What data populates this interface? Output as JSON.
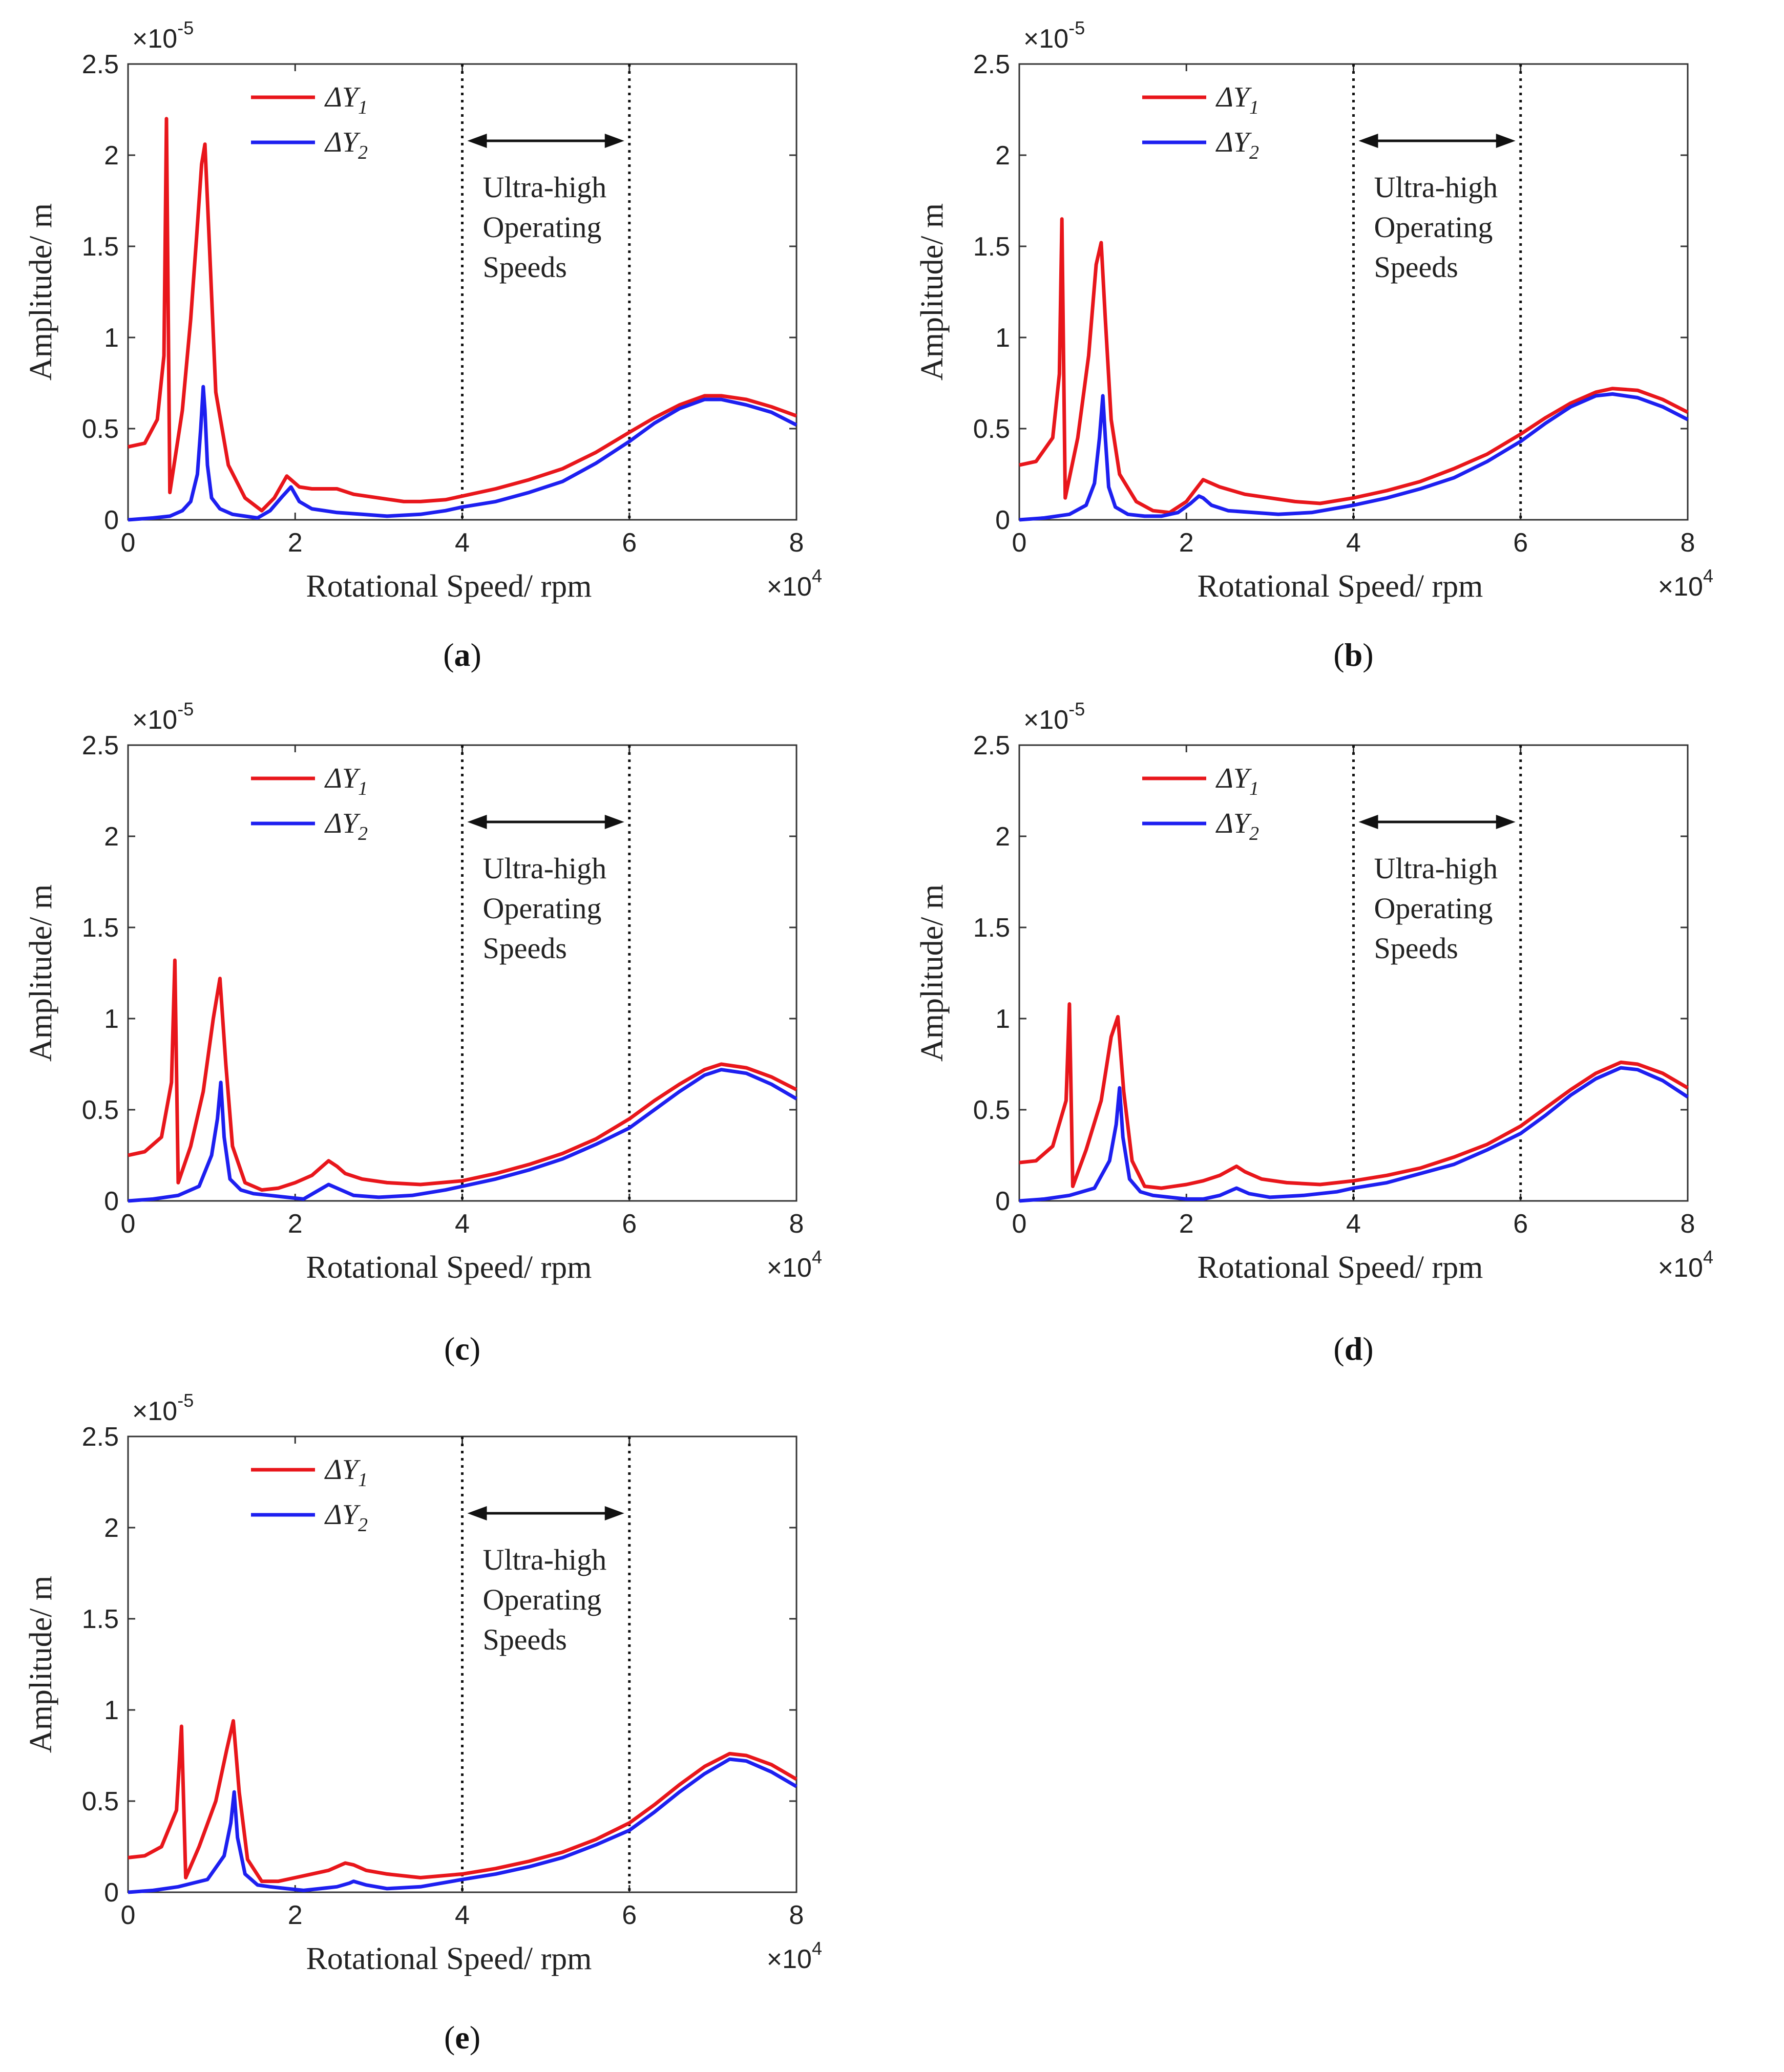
{
  "chart_data": [
    {
      "type": "line",
      "caption": "a",
      "xlabel": "Rotational  Speed/ rpm",
      "ylabel": "Amplitude/  m",
      "xlim": [
        0,
        80000
      ],
      "ylim": [
        0,
        2.5e-05
      ],
      "x_ticks": [
        "0",
        "2",
        "4",
        "6",
        "8"
      ],
      "y_ticks": [
        "0",
        "0.5",
        "1",
        "1.5",
        "2",
        "2.5"
      ],
      "x_multiplier": {
        "base": "×10",
        "exp": "4"
      },
      "y_multiplier": {
        "base": "×10",
        "exp": "-5"
      },
      "annotation": {
        "lines": [
          "Ultra-high",
          "Operating",
          "Speeds"
        ],
        "x_range": [
          40000,
          60000
        ]
      },
      "series": [
        {
          "name": "ΔY1",
          "symbol": "ΔY",
          "subscript": "1",
          "color": "#e8161b",
          "x": [
            0,
            2000,
            3500,
            4300,
            4600,
            5000,
            6500,
            7500,
            8200,
            8800,
            9200,
            9700,
            10500,
            12000,
            14000,
            16000,
            17500,
            19000,
            19500,
            20500,
            22000,
            25000,
            27000,
            30000,
            33000,
            35000,
            38000,
            40000,
            44000,
            48000,
            52000,
            56000,
            60000,
            63000,
            66000,
            69000,
            71000,
            74000,
            77000,
            80000
          ],
          "y": [
            4e-06,
            4.2e-06,
            5.5e-06,
            9e-06,
            2.2e-05,
            1.5e-06,
            6e-06,
            1.1e-05,
            1.55e-05,
            1.95e-05,
            2.06e-05,
            1.55e-05,
            7e-06,
            3e-06,
            1.2e-06,
            5e-07,
            1.2e-06,
            2.4e-06,
            2.2e-06,
            1.8e-06,
            1.7e-06,
            1.7e-06,
            1.4e-06,
            1.2e-06,
            1e-06,
            1e-06,
            1.1e-06,
            1.3e-06,
            1.7e-06,
            2.2e-06,
            2.8e-06,
            3.7e-06,
            4.8e-06,
            5.6e-06,
            6.3e-06,
            6.8e-06,
            6.8e-06,
            6.6e-06,
            6.2e-06,
            5.7e-06
          ]
        },
        {
          "name": "ΔY2",
          "symbol": "ΔY",
          "subscript": "2",
          "color": "#1d1ff0",
          "x": [
            0,
            3000,
            5000,
            6500,
            7500,
            8300,
            8700,
            9000,
            9200,
            9500,
            10000,
            11000,
            12500,
            14000,
            15500,
            17000,
            18500,
            19500,
            20500,
            22000,
            25000,
            28000,
            31000,
            35000,
            38000,
            40000,
            44000,
            48000,
            52000,
            56000,
            60000,
            63000,
            66000,
            69000,
            71000,
            74000,
            77000,
            80000
          ],
          "y": [
            0,
            1e-07,
            2e-07,
            5e-07,
            1e-06,
            2.5e-06,
            5e-06,
            7.3e-06,
            6e-06,
            3e-06,
            1.2e-06,
            6e-07,
            3e-07,
            2e-07,
            1e-07,
            5e-07,
            1.3e-06,
            1.8e-06,
            1e-06,
            6e-07,
            4e-07,
            3e-07,
            2e-07,
            3e-07,
            5e-07,
            7e-07,
            1e-06,
            1.5e-06,
            2.1e-06,
            3.1e-06,
            4.3e-06,
            5.3e-06,
            6.1e-06,
            6.6e-06,
            6.6e-06,
            6.3e-06,
            5.9e-06,
            5.2e-06
          ]
        }
      ]
    },
    {
      "type": "line",
      "caption": "b",
      "xlabel": "Rotational  Speed/ rpm",
      "ylabel": "Amplitude/  m",
      "xlim": [
        0,
        80000
      ],
      "ylim": [
        0,
        2.5e-05
      ],
      "x_ticks": [
        "0",
        "2",
        "4",
        "6",
        "8"
      ],
      "y_ticks": [
        "0",
        "0.5",
        "1",
        "1.5",
        "2",
        "2.5"
      ],
      "x_multiplier": {
        "base": "×10",
        "exp": "4"
      },
      "y_multiplier": {
        "base": "×10",
        "exp": "-5"
      },
      "annotation": {
        "lines": [
          "Ultra-high",
          "Operating",
          "Speeds"
        ],
        "x_range": [
          40000,
          60000
        ]
      },
      "series": [
        {
          "name": "ΔY1",
          "symbol": "ΔY",
          "subscript": "1",
          "color": "#e8161b",
          "x": [
            0,
            2000,
            4000,
            4800,
            5100,
            5500,
            7000,
            8300,
            9200,
            9800,
            10300,
            11000,
            12000,
            14000,
            16000,
            18000,
            20000,
            21000,
            22000,
            24000,
            27000,
            30000,
            33000,
            36000,
            40000,
            44000,
            48000,
            52000,
            56000,
            60000,
            63000,
            66000,
            69000,
            71000,
            74000,
            77000,
            80000
          ],
          "y": [
            3e-06,
            3.2e-06,
            4.5e-06,
            8e-06,
            1.65e-05,
            1.2e-06,
            4.5e-06,
            9e-06,
            1.4e-05,
            1.52e-05,
            1.1e-05,
            5.5e-06,
            2.5e-06,
            1e-06,
            5e-07,
            4e-07,
            1e-06,
            1.6e-06,
            2.2e-06,
            1.8e-06,
            1.4e-06,
            1.2e-06,
            1e-06,
            9e-07,
            1.2e-06,
            1.6e-06,
            2.1e-06,
            2.8e-06,
            3.6e-06,
            4.7e-06,
            5.6e-06,
            6.4e-06,
            7e-06,
            7.2e-06,
            7.1e-06,
            6.6e-06,
            5.9e-06
          ]
        },
        {
          "name": "ΔY2",
          "symbol": "ΔY",
          "subscript": "2",
          "color": "#1d1ff0",
          "x": [
            0,
            3000,
            6000,
            8000,
            9000,
            9600,
            10000,
            10300,
            10700,
            11500,
            13000,
            15000,
            17000,
            19000,
            20500,
            21500,
            22000,
            23000,
            25000,
            28000,
            31000,
            35000,
            40000,
            44000,
            48000,
            52000,
            56000,
            60000,
            63000,
            66000,
            69000,
            71000,
            74000,
            77000,
            80000
          ],
          "y": [
            0,
            1e-07,
            3e-07,
            8e-07,
            2e-06,
            4.5e-06,
            6.8e-06,
            4.5e-06,
            1.8e-06,
            7e-07,
            3e-07,
            2e-07,
            2e-07,
            4e-07,
            9e-07,
            1.3e-06,
            1.2e-06,
            8e-07,
            5e-07,
            4e-07,
            3e-07,
            4e-07,
            8e-07,
            1.2e-06,
            1.7e-06,
            2.3e-06,
            3.2e-06,
            4.3e-06,
            5.3e-06,
            6.2e-06,
            6.8e-06,
            6.9e-06,
            6.7e-06,
            6.2e-06,
            5.5e-06
          ]
        }
      ]
    },
    {
      "type": "line",
      "caption": "c",
      "xlabel": "Rotational  Speed/ rpm",
      "ylabel": "Amplitude/  m",
      "xlim": [
        0,
        80000
      ],
      "ylim": [
        0,
        2.5e-05
      ],
      "x_ticks": [
        "0",
        "2",
        "4",
        "6",
        "8"
      ],
      "y_ticks": [
        "0",
        "0.5",
        "1",
        "1.5",
        "2",
        "2.5"
      ],
      "x_multiplier": {
        "base": "×10",
        "exp": "4"
      },
      "y_multiplier": {
        "base": "×10",
        "exp": "-5"
      },
      "annotation": {
        "lines": [
          "Ultra-high",
          "Operating",
          "Speeds"
        ],
        "x_range": [
          40000,
          60000
        ]
      },
      "series": [
        {
          "name": "ΔY1",
          "symbol": "ΔY",
          "subscript": "1",
          "color": "#e8161b",
          "x": [
            0,
            2000,
            4000,
            5200,
            5600,
            6000,
            7500,
            9000,
            10200,
            11000,
            11700,
            12500,
            14000,
            16000,
            18000,
            20000,
            22000,
            24000,
            25000,
            26000,
            28000,
            31000,
            35000,
            40000,
            44000,
            48000,
            52000,
            56000,
            60000,
            63000,
            66000,
            69000,
            71000,
            74000,
            77000,
            80000
          ],
          "y": [
            2.5e-06,
            2.7e-06,
            3.5e-06,
            6.5e-06,
            1.32e-05,
            1e-06,
            3e-06,
            6e-06,
            1e-05,
            1.22e-05,
            7.5e-06,
            3e-06,
            1e-06,
            6e-07,
            7e-07,
            1e-06,
            1.4e-06,
            2.2e-06,
            1.9e-06,
            1.5e-06,
            1.2e-06,
            1e-06,
            9e-07,
            1.1e-06,
            1.5e-06,
            2e-06,
            2.6e-06,
            3.4e-06,
            4.5e-06,
            5.5e-06,
            6.4e-06,
            7.2e-06,
            7.5e-06,
            7.3e-06,
            6.8e-06,
            6.1e-06
          ]
        },
        {
          "name": "ΔY2",
          "symbol": "ΔY",
          "subscript": "2",
          "color": "#1d1ff0",
          "x": [
            0,
            3000,
            6000,
            8500,
            10000,
            10700,
            11100,
            11500,
            12200,
            13500,
            15000,
            17000,
            19000,
            21000,
            22500,
            24000,
            25000,
            27000,
            30000,
            34000,
            38000,
            40000,
            44000,
            48000,
            52000,
            56000,
            60000,
            63000,
            66000,
            69000,
            71000,
            74000,
            77000,
            80000
          ],
          "y": [
            0,
            1e-07,
            3e-07,
            8e-07,
            2.5e-06,
            4.5e-06,
            6.5e-06,
            3.5e-06,
            1.2e-06,
            6e-07,
            4e-07,
            3e-07,
            2e-07,
            1e-07,
            5e-07,
            9e-07,
            7e-07,
            3e-07,
            2e-07,
            3e-07,
            6e-07,
            8e-07,
            1.2e-06,
            1.7e-06,
            2.3e-06,
            3.1e-06,
            4e-06,
            5e-06,
            6e-06,
            6.9e-06,
            7.2e-06,
            7e-06,
            6.4e-06,
            5.6e-06
          ]
        }
      ]
    },
    {
      "type": "line",
      "caption": "d",
      "xlabel": "Rotational  Speed/ rpm",
      "ylabel": "Amplitude/  m",
      "xlim": [
        0,
        80000
      ],
      "ylim": [
        0,
        2.5e-05
      ],
      "x_ticks": [
        "0",
        "2",
        "4",
        "6",
        "8"
      ],
      "y_ticks": [
        "0",
        "0.5",
        "1",
        "1.5",
        "2",
        "2.5"
      ],
      "x_multiplier": {
        "base": "×10",
        "exp": "4"
      },
      "y_multiplier": {
        "base": "×10",
        "exp": "-5"
      },
      "annotation": {
        "lines": [
          "Ultra-high",
          "Operating",
          "Speeds"
        ],
        "x_range": [
          40000,
          60000
        ]
      },
      "series": [
        {
          "name": "ΔY1",
          "symbol": "ΔY",
          "subscript": "1",
          "color": "#e8161b",
          "x": [
            0,
            2000,
            4000,
            5600,
            6000,
            6400,
            8000,
            9800,
            11000,
            11800,
            12500,
            13500,
            15000,
            17000,
            20000,
            22000,
            24000,
            26000,
            27000,
            29000,
            32000,
            36000,
            40000,
            44000,
            48000,
            52000,
            56000,
            60000,
            63000,
            66000,
            69000,
            72000,
            74000,
            77000,
            80000
          ],
          "y": [
            2.1e-06,
            2.2e-06,
            3e-06,
            5.5e-06,
            1.08e-05,
            8e-07,
            2.8e-06,
            5.5e-06,
            9e-06,
            1.01e-05,
            6e-06,
            2.2e-06,
            8e-07,
            7e-07,
            9e-07,
            1.1e-06,
            1.4e-06,
            1.9e-06,
            1.6e-06,
            1.2e-06,
            1e-06,
            9e-07,
            1.1e-06,
            1.4e-06,
            1.8e-06,
            2.4e-06,
            3.1e-06,
            4.1e-06,
            5.1e-06,
            6.1e-06,
            7e-06,
            7.6e-06,
            7.5e-06,
            7e-06,
            6.2e-06
          ]
        },
        {
          "name": "ΔY2",
          "symbol": "ΔY",
          "subscript": "2",
          "color": "#1d1ff0",
          "x": [
            0,
            3000,
            6000,
            9000,
            10800,
            11600,
            12000,
            12400,
            13200,
            14500,
            16000,
            18000,
            20000,
            22000,
            24000,
            25500,
            26000,
            27500,
            30000,
            34000,
            38000,
            40000,
            44000,
            48000,
            52000,
            56000,
            60000,
            63000,
            66000,
            69000,
            72000,
            74000,
            77000,
            80000
          ],
          "y": [
            0,
            1e-07,
            3e-07,
            7e-07,
            2.2e-06,
            4.2e-06,
            6.2e-06,
            3.5e-06,
            1.2e-06,
            5e-07,
            3e-07,
            2e-07,
            1e-07,
            1e-07,
            3e-07,
            6e-07,
            7e-07,
            4e-07,
            2e-07,
            3e-07,
            5e-07,
            7e-07,
            1e-06,
            1.5e-06,
            2e-06,
            2.8e-06,
            3.7e-06,
            4.7e-06,
            5.8e-06,
            6.7e-06,
            7.3e-06,
            7.2e-06,
            6.6e-06,
            5.7e-06
          ]
        }
      ]
    },
    {
      "type": "line",
      "caption": "e",
      "xlabel": "Rotational  Speed/ rpm",
      "ylabel": "Amplitude/  m",
      "xlim": [
        0,
        80000
      ],
      "ylim": [
        0,
        2.5e-05
      ],
      "x_ticks": [
        "0",
        "2",
        "4",
        "6",
        "8"
      ],
      "y_ticks": [
        "0",
        "0.5",
        "1",
        "1.5",
        "2",
        "2.5"
      ],
      "x_multiplier": {
        "base": "×10",
        "exp": "4"
      },
      "y_multiplier": {
        "base": "×10",
        "exp": "-5"
      },
      "annotation": {
        "lines": [
          "Ultra-high",
          "Operating",
          "Speeds"
        ],
        "x_range": [
          40000,
          60000
        ]
      },
      "series": [
        {
          "name": "ΔY1",
          "symbol": "ΔY",
          "subscript": "1",
          "color": "#e8161b",
          "x": [
            0,
            2000,
            4000,
            5800,
            6400,
            6900,
            8500,
            10500,
            11800,
            12600,
            13300,
            14300,
            16000,
            18000,
            20000,
            22000,
            24000,
            26000,
            27000,
            28500,
            31000,
            35000,
            40000,
            44000,
            48000,
            52000,
            56000,
            60000,
            63000,
            66000,
            69000,
            72000,
            74000,
            77000,
            80000
          ],
          "y": [
            1.9e-06,
            2e-06,
            2.5e-06,
            4.5e-06,
            9.1e-06,
            8e-07,
            2.5e-06,
            5e-06,
            7.8e-06,
            9.4e-06,
            5.5e-06,
            1.8e-06,
            6e-07,
            6e-07,
            8e-07,
            1e-06,
            1.2e-06,
            1.6e-06,
            1.5e-06,
            1.2e-06,
            1e-06,
            8e-07,
            1e-06,
            1.3e-06,
            1.7e-06,
            2.2e-06,
            2.9e-06,
            3.8e-06,
            4.8e-06,
            5.9e-06,
            6.9e-06,
            7.6e-06,
            7.5e-06,
            7e-06,
            6.2e-06
          ]
        },
        {
          "name": "ΔY2",
          "symbol": "ΔY",
          "subscript": "2",
          "color": "#1d1ff0",
          "x": [
            0,
            3000,
            6000,
            9500,
            11500,
            12300,
            12700,
            13100,
            14000,
            15500,
            17000,
            19000,
            21000,
            23000,
            25000,
            26500,
            27000,
            28500,
            31000,
            35000,
            40000,
            44000,
            48000,
            52000,
            56000,
            60000,
            63000,
            66000,
            69000,
            72000,
            74000,
            77000,
            80000
          ],
          "y": [
            0,
            1e-07,
            3e-07,
            7e-07,
            2e-06,
            3.8e-06,
            5.5e-06,
            3e-06,
            1e-06,
            4e-07,
            3e-07,
            2e-07,
            1e-07,
            2e-07,
            3e-07,
            5e-07,
            6e-07,
            4e-07,
            2e-07,
            3e-07,
            7e-07,
            1e-06,
            1.4e-06,
            1.9e-06,
            2.6e-06,
            3.4e-06,
            4.4e-06,
            5.5e-06,
            6.5e-06,
            7.3e-06,
            7.2e-06,
            6.6e-06,
            5.8e-06
          ]
        }
      ]
    }
  ]
}
